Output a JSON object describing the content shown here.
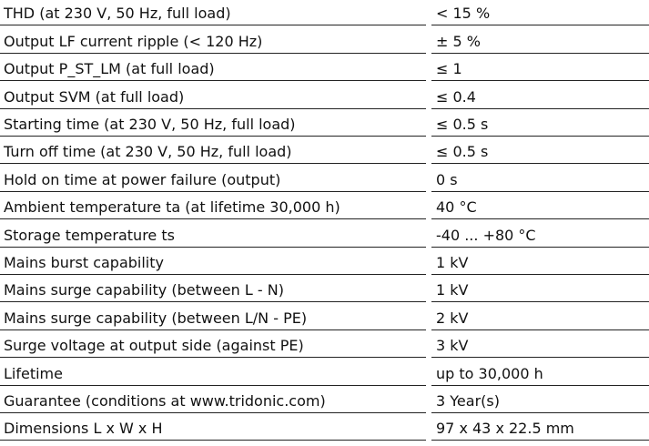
{
  "table": {
    "rows": [
      [
        "THD (at 230 V, 50 Hz, full load)",
        "< 15 %"
      ],
      [
        "Output LF current ripple (< 120 Hz)",
        "± 5 %"
      ],
      [
        "Output P_ST_LM (at full load)",
        "≤ 1"
      ],
      [
        "Output SVM (at full load)",
        "≤ 0.4"
      ],
      [
        "Starting time (at 230 V, 50 Hz, full load)",
        "≤ 0.5 s"
      ],
      [
        "Turn off time (at 230 V, 50 Hz, full load)",
        "≤ 0.5 s"
      ],
      [
        "Hold on time at power failure (output)",
        "0 s"
      ],
      [
        "Ambient temperature ta (at lifetime 30,000 h)",
        "40 °C"
      ],
      [
        "Storage temperature ts",
        "-40 ... +80 °C"
      ],
      [
        "Mains burst capability",
        "1 kV"
      ],
      [
        "Mains surge capability (between L - N)",
        "1 kV"
      ],
      [
        "Mains surge capability (between L/N - PE)",
        "2 kV"
      ],
      [
        "Surge voltage at output side (against PE)",
        "3 kV"
      ],
      [
        "Lifetime",
        "up to 30,000 h"
      ],
      [
        "Guarantee (conditions at www.tridonic.com)",
        "3 Year(s)"
      ],
      [
        "Dimensions L x W x H",
        "97 x 43 x 22.5 mm"
      ]
    ]
  }
}
